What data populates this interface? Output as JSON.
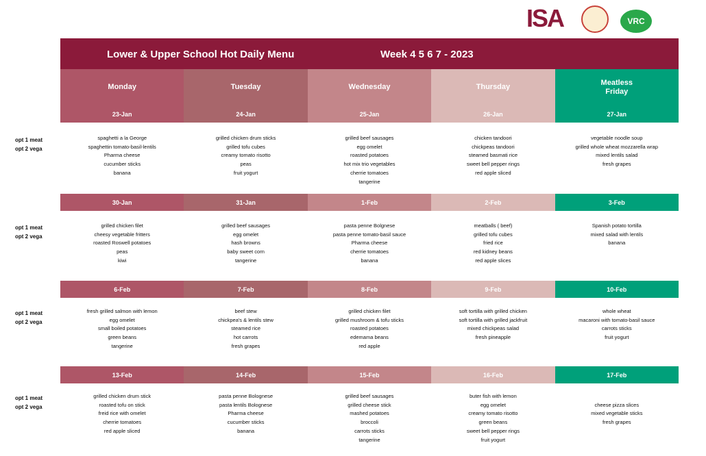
{
  "logos": {
    "isa": "ISA",
    "vrc": "VRC"
  },
  "header": {
    "title": "Lower & Upper School Hot Daily Menu",
    "week": "Week  4 5 6 7 - 2023"
  },
  "days": [
    "Monday",
    "Tuesday",
    "Wednesday",
    "Thursday",
    "Meatless\nFriday"
  ],
  "weeks": [
    {
      "options": [
        "opt 1 meat",
        "opt 2 vega"
      ],
      "dates": [
        "23-Jan",
        "24-Jan",
        "25-Jan",
        "26-Jan",
        "27-Jan"
      ],
      "menus": [
        [
          "spaghetti a la George",
          "spaghettin tomato-basil-lentils",
          "Pharma cheese",
          "cucumber sticks",
          "banana"
        ],
        [
          "grilled chicken drum sticks",
          "grilled tofu cubes",
          "creamy tomato risotto",
          "peas",
          "fruit yogurt"
        ],
        [
          "grilled beef sausages",
          "egg omelet",
          "roasted potatoes",
          "hot mix trio vegetables",
          "cherrie tomatoes",
          "tangerine"
        ],
        [
          "chicken tandoori",
          "chickpeas tandoori",
          "steamed basmati rice",
          "sweet bell pepper rings",
          "red apple sliced"
        ],
        [
          "vegetable noodle soup",
          "grilled whole wheat mozzarella wrap",
          "mixed lentils salad",
          "fresh grapes"
        ]
      ]
    },
    {
      "options": [
        "opt 1 meat",
        "opt 2 vega"
      ],
      "dates": [
        "30-Jan",
        "31-Jan",
        "1-Feb",
        "2-Feb",
        "3-Feb"
      ],
      "menus": [
        [
          "grilled chicken filet",
          "cheesy vegetable fritters",
          "roasted Roswell potatoes",
          "peas",
          "kiwi"
        ],
        [
          "grilled beef sausages",
          "egg omelet",
          "hash browns",
          "baby sweet corn",
          "tangerine"
        ],
        [
          "pasta penne Bolgnese",
          "pasta penne tomato-basil sauce",
          "Pharma cheese",
          "cherrie tomatoes",
          "banana"
        ],
        [
          "meatballs ( beef)",
          "grilled tofu cubes",
          "fried rice",
          "red kidney beans",
          "red apple slices"
        ],
        [
          "Spanish potato tortilla",
          "mixed salad with lentils",
          "banana"
        ]
      ]
    },
    {
      "options": [
        "opt 1 meat",
        "opt 2 vega"
      ],
      "dates": [
        "6-Feb",
        "7-Feb",
        "8-Feb",
        "9-Feb",
        "10-Feb"
      ],
      "menus": [
        [
          "fresh grilled salmon with lemon",
          "egg omelet",
          "small boiled potatoes",
          "green beans",
          "tangerine"
        ],
        [
          "beef stew",
          "chickpea's & lentils stew",
          "steamed rice",
          "hot carrots",
          "fresh grapes"
        ],
        [
          "grilled chicken filet",
          "grilled mushroom & tofu sticks",
          "roasted potatoes",
          "edemama beans",
          "red apple"
        ],
        [
          "soft tortilla with grilled chicken",
          "soft tortilla with grilled jackfruit",
          "mixed chickpeas salad",
          "fresh pineapple"
        ],
        [
          "whole wheat",
          "macaroni with tomato-basil sauce",
          "carrots sticks",
          "fruit yogurt"
        ]
      ]
    },
    {
      "options": [
        "opt 1 meat",
        "opt 2 vega"
      ],
      "dates": [
        "13-Feb",
        "14-Feb",
        "15-Feb",
        "16-Feb",
        "17-Feb"
      ],
      "menus": [
        [
          "grilled chicken drum stick",
          "roasted tofu on stick",
          "freid rice with omelet",
          "cherrie tomatoes",
          "red apple sliced"
        ],
        [
          "pasta penne Bolognese",
          "pasta lentils Bolognese",
          "Pharma cheese",
          "cucumber sticks",
          "banana"
        ],
        [
          "grilled beef sausages",
          "grilled cheese stick",
          "mashed potatoes",
          "broccoli",
          "carrots sticks",
          "tangerine"
        ],
        [
          "buter fish with lemon",
          "egg omelet",
          "creamy tomato risotto",
          "green beans",
          "sweet bell pepper rings",
          "fruit yogurt"
        ],
        [
          "cheese pizza slices",
          "mixed vegetable sticks",
          "fresh grapes"
        ]
      ]
    }
  ]
}
